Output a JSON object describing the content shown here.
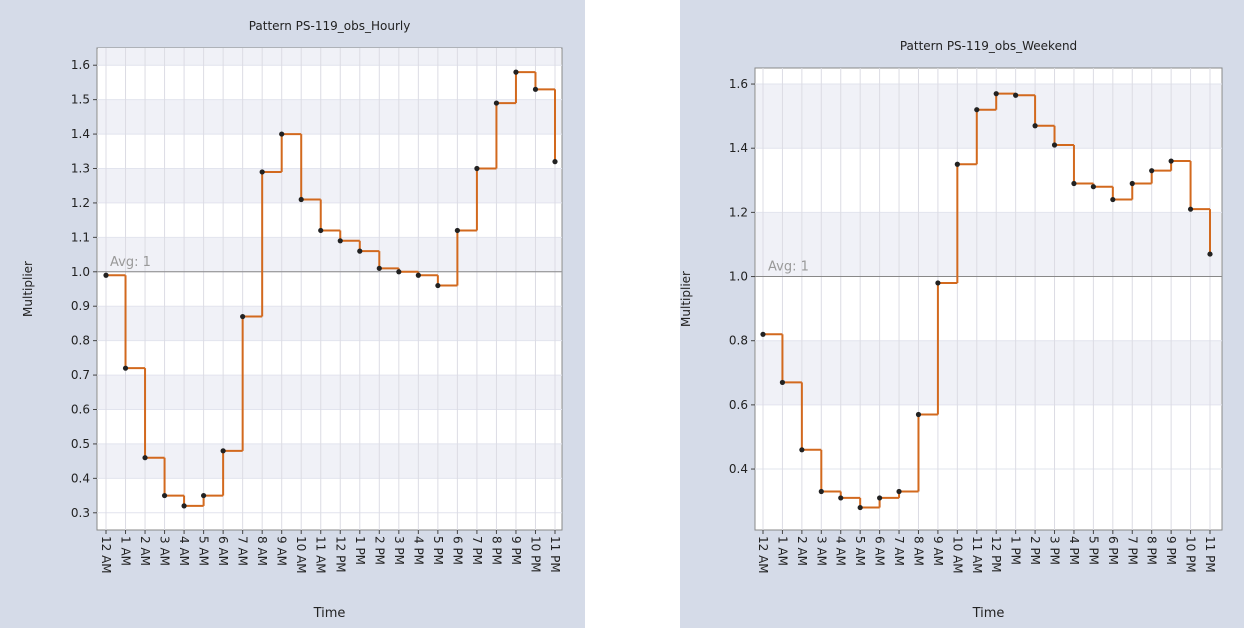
{
  "chart_data": [
    {
      "type": "step",
      "title": "Pattern PS-119_obs_Hourly",
      "x_label": "Time",
      "y_label": "Multiplier",
      "categories": [
        "12 AM",
        "1 AM",
        "2 AM",
        "3 AM",
        "4 AM",
        "5 AM",
        "6 AM",
        "7 AM",
        "8 AM",
        "9 AM",
        "10 AM",
        "11 AM",
        "12 PM",
        "1 PM",
        "2 PM",
        "3 PM",
        "4 PM",
        "5 PM",
        "6 PM",
        "7 PM",
        "8 PM",
        "9 PM",
        "10 PM",
        "11 PM"
      ],
      "values": [
        0.99,
        0.72,
        0.46,
        0.35,
        0.32,
        0.35,
        0.48,
        0.87,
        1.29,
        1.4,
        1.21,
        1.12,
        1.09,
        1.06,
        1.01,
        1.0,
        0.99,
        0.96,
        1.12,
        1.3,
        1.49,
        1.58,
        1.53,
        1.32
      ],
      "color": "#d2691e",
      "ylim": [
        0.25,
        1.65
      ],
      "yticks": [
        {
          "value": 0.3,
          "label": "0.3"
        },
        {
          "value": 0.4,
          "label": "0.4"
        },
        {
          "value": 0.5,
          "label": "0.5"
        },
        {
          "value": 0.6,
          "label": "0.6"
        },
        {
          "value": 0.7,
          "label": "0.7"
        },
        {
          "value": 0.8,
          "label": "0.8"
        },
        {
          "value": 0.9,
          "label": "0.9"
        },
        {
          "value": 1.0,
          "label": "1.0"
        },
        {
          "value": 1.1,
          "label": "1.1"
        },
        {
          "value": 1.2,
          "label": "1.2"
        },
        {
          "value": 1.3,
          "label": "1.3"
        },
        {
          "value": 1.4,
          "label": "1.4"
        },
        {
          "value": 1.5,
          "label": "1.5"
        },
        {
          "value": 1.6,
          "label": "1.6"
        }
      ],
      "avg": {
        "value": 1,
        "label": "Avg: 1"
      },
      "grid": true
    },
    {
      "type": "step",
      "title": "Pattern PS-119_obs_Weekend",
      "x_label": "Time",
      "y_label": "Multiplier",
      "categories": [
        "12 AM",
        "1 AM",
        "2 AM",
        "3 AM",
        "4 AM",
        "5 AM",
        "6 AM",
        "7 AM",
        "8 AM",
        "9 AM",
        "10 AM",
        "11 AM",
        "12 PM",
        "1 PM",
        "2 PM",
        "3 PM",
        "4 PM",
        "5 PM",
        "6 PM",
        "7 PM",
        "8 PM",
        "9 PM",
        "10 PM",
        "11 PM"
      ],
      "values": [
        0.82,
        0.67,
        0.46,
        0.33,
        0.31,
        0.28,
        0.31,
        0.33,
        0.57,
        0.98,
        1.35,
        1.52,
        1.57,
        1.565,
        1.47,
        1.41,
        1.29,
        1.28,
        1.24,
        1.29,
        1.33,
        1.36,
        1.21,
        1.07
      ],
      "color": "#d2691e",
      "ylim": [
        0.21,
        1.65
      ],
      "yticks": [
        {
          "value": 0.4,
          "label": "0.4"
        },
        {
          "value": 0.6,
          "label": "0.6"
        },
        {
          "value": 0.8,
          "label": "0.8"
        },
        {
          "value": 1.0,
          "label": "1.0"
        },
        {
          "value": 1.2,
          "label": "1.2"
        },
        {
          "value": 1.4,
          "label": "1.4"
        },
        {
          "value": 1.6,
          "label": "1.6"
        }
      ],
      "avg": {
        "value": 1,
        "label": "Avg: 1"
      },
      "grid": true
    }
  ]
}
